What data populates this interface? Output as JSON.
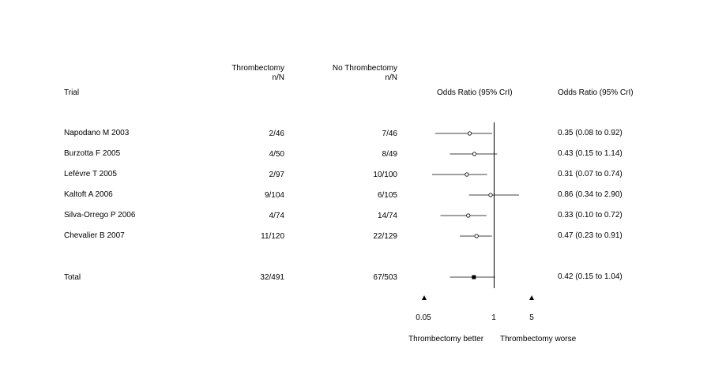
{
  "headers": {
    "trial": "Trial",
    "thrombectomy_line1": "Thrombectomy",
    "thrombectomy_line2": "n/N",
    "no_thrombectomy_line1": "No Thrombectomy",
    "no_thrombectomy_line2": "n/N",
    "plot_header": "Odds Ratio (95% CrI)",
    "value_header": "Odds Ratio (95% CrI)"
  },
  "rows": [
    {
      "trial": "Napodano M 2003",
      "thrombectomy": "2/46",
      "no_thrombectomy": "7/46",
      "ci_text": "0.35 (0.08 to 0.92)"
    },
    {
      "trial": "Burzotta F 2005",
      "thrombectomy": "4/50",
      "no_thrombectomy": "8/49",
      "ci_text": "0.43 (0.15 to 1.14)"
    },
    {
      "trial": "Lefévre T 2005",
      "thrombectomy": "2/97",
      "no_thrombectomy": "10/100",
      "ci_text": "0.31 (0.07 to 0.74)"
    },
    {
      "trial": "Kaltoft A 2006",
      "thrombectomy": "9/104",
      "no_thrombectomy": "6/105",
      "ci_text": "0.86 (0.34 to 2.90)"
    },
    {
      "trial": "Silva-Orrego P 2006",
      "thrombectomy": "4/74",
      "no_thrombectomy": "14/74",
      "ci_text": "0.33 (0.10 to 0.72)"
    },
    {
      "trial": "Chevalier B 2007",
      "thrombectomy": "11/120",
      "no_thrombectomy": "22/129",
      "ci_text": "0.47 (0.23 to 0.91)"
    }
  ],
  "total": {
    "label": "Total",
    "thrombectomy": "32/491",
    "no_thrombectomy": "67/503",
    "ci_text": "0.42 (0.15 to 1.04)"
  },
  "axis": {
    "tick_labels": [
      "0.05",
      "1",
      "5"
    ],
    "left_label": "Thrombectomy better",
    "right_label": "Thrombectomy worse"
  },
  "chart_data": {
    "type": "forest",
    "scale": "log",
    "xlim": [
      0.05,
      5
    ],
    "reference_line": 1,
    "ticks": [
      0.05,
      1,
      5
    ],
    "studies": [
      {
        "name": "Napodano M 2003",
        "or": 0.35,
        "lo": 0.08,
        "hi": 0.92
      },
      {
        "name": "Burzotta F 2005",
        "or": 0.43,
        "lo": 0.15,
        "hi": 1.14
      },
      {
        "name": "Lefévre T 2005",
        "or": 0.31,
        "lo": 0.07,
        "hi": 0.74
      },
      {
        "name": "Kaltoft A 2006",
        "or": 0.86,
        "lo": 0.34,
        "hi": 2.9
      },
      {
        "name": "Silva-Orrego P 2006",
        "or": 0.33,
        "lo": 0.1,
        "hi": 0.72
      },
      {
        "name": "Chevalier B 2007",
        "or": 0.47,
        "lo": 0.23,
        "hi": 0.91
      }
    ],
    "pooled": {
      "name": "Total",
      "or": 0.42,
      "lo": 0.15,
      "hi": 1.04
    }
  }
}
